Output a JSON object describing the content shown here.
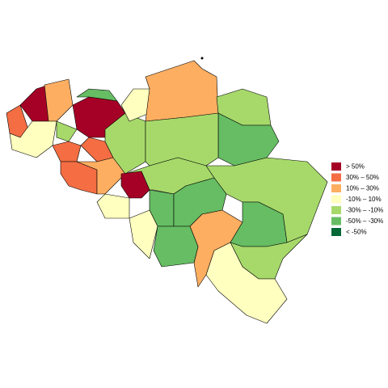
{
  "legend": {
    "items": [
      {
        "label": ">  50%",
        "color": "#a50026"
      },
      {
        "label": "30%  –  50%",
        "color": "#f46d43"
      },
      {
        "label": "10%  –  30%",
        "color": "#fdae61"
      },
      {
        "label": "-10%  –  10%",
        "color": "#ffffbf"
      },
      {
        "label": "-30%  –  -10%",
        "color": "#a6d96a"
      },
      {
        "label": "-50%  –  -30%",
        "color": "#66bd63"
      },
      {
        "label": "<  -50%",
        "color": "#006837"
      }
    ]
  }
}
